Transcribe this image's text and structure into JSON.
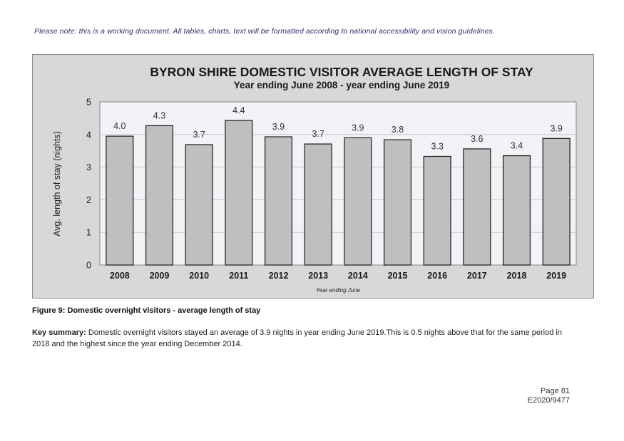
{
  "document": {
    "note": "Please note: this is a working document. All tables, charts, text will be formatted according to national accessibility and vision guidelines.",
    "figure_caption": "Figure 9: Domestic overnight visitors - average length of stay",
    "summary_label": "Key summary:",
    "summary_text": " Domestic overnight visitors stayed an average of 3.9 nights in year ending June 2019.This is 0.5 nights above that for the same period in 2018 and the highest since the year ending December 2014.",
    "page_number": "Page 81",
    "reference": "E2020/9477"
  },
  "chart_data": {
    "type": "bar",
    "title": "BYRON SHIRE DOMESTIC VISITOR AVERAGE LENGTH OF STAY",
    "subtitle": "Year ending June 2008 - year ending June 2019",
    "xlabel": "Year ending June",
    "ylabel": "Avg. length of stay (nights)",
    "categories": [
      "2008",
      "2009",
      "2010",
      "2011",
      "2012",
      "2013",
      "2014",
      "2015",
      "2016",
      "2017",
      "2018",
      "2019"
    ],
    "values": [
      3.95,
      4.27,
      3.69,
      4.43,
      3.93,
      3.71,
      3.9,
      3.84,
      3.33,
      3.56,
      3.35,
      3.88
    ],
    "data_labels": [
      "4.0",
      "4.3",
      "3.7",
      "4.4",
      "3.9",
      "3.7",
      "3.9",
      "3.8",
      "3.3",
      "3.6",
      "3.4",
      "3.9"
    ],
    "ylim": [
      0,
      5
    ],
    "yticks": [
      0,
      1,
      2,
      3,
      4,
      5
    ],
    "grid": true,
    "colors": {
      "bar": "#bfbfbf",
      "bar_border": "#1a1a1a",
      "plot_bg": "#f5f2f7",
      "frame_bg": "#d8d8d8"
    }
  }
}
